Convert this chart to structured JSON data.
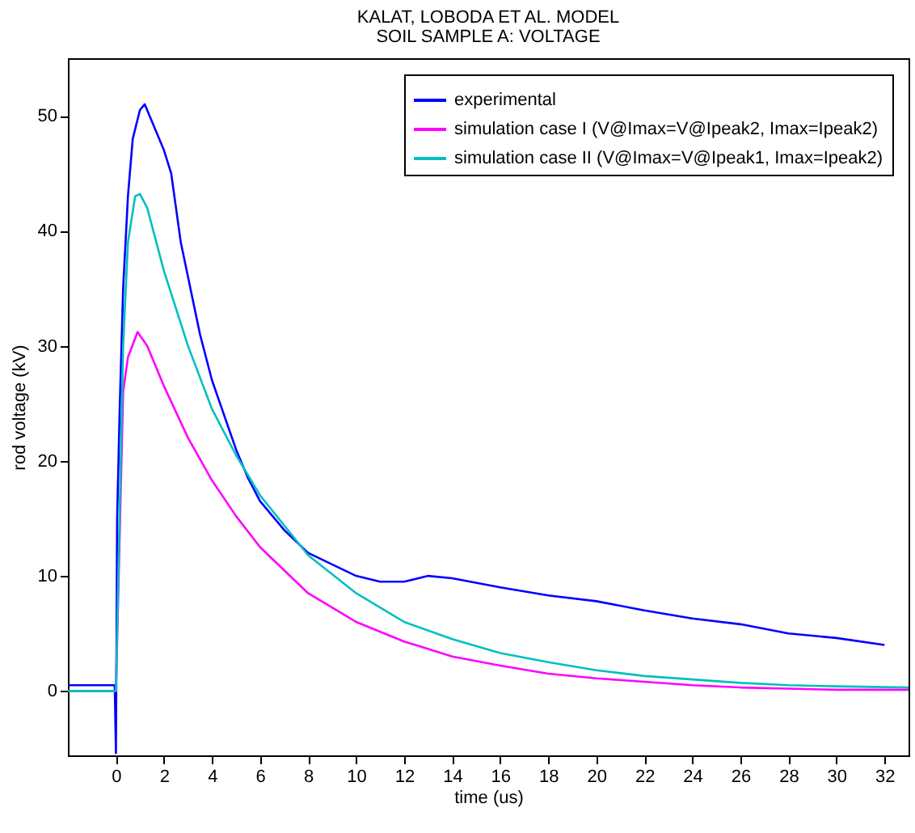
{
  "chart_data": {
    "type": "line",
    "title": "KALAT, LOBODA ET AL. MODEL",
    "subtitle": "SOIL SAMPLE A: VOLTAGE",
    "xlabel": "time (us)",
    "ylabel": "rod voltage (kV)",
    "xlim": [
      -2,
      33
    ],
    "xticks": [
      0,
      2,
      4,
      6,
      8,
      10,
      12,
      14,
      16,
      18,
      20,
      22,
      24,
      26,
      28,
      30,
      32
    ],
    "ylim": [
      -5.6,
      55
    ],
    "yticks": [
      0,
      10,
      20,
      30,
      40,
      50
    ],
    "grid": false,
    "legend": "top right",
    "marker": "none",
    "line_style": "solid",
    "series": [
      {
        "name": "experimental",
        "color": "#0000ff",
        "x": [
          -2,
          -0.05,
          0,
          0.05,
          0.15,
          0.3,
          0.5,
          0.7,
          1,
          1.2,
          1.5,
          2,
          2.3,
          2.7,
          3,
          3.5,
          4,
          4.5,
          5,
          5.5,
          6,
          7,
          8,
          9,
          10,
          11,
          12,
          13,
          14,
          16,
          18,
          20,
          22,
          24,
          26,
          28,
          30,
          32
        ],
        "values": [
          0.5,
          0.5,
          -5.4,
          15,
          24,
          35,
          43,
          48,
          50.5,
          51,
          49.5,
          47,
          45,
          39,
          36,
          31,
          27,
          24,
          21,
          18.5,
          16.5,
          14,
          12,
          11,
          10,
          9.5,
          9.5,
          10,
          9.8,
          9,
          8.3,
          7.8,
          7,
          6.3,
          5.8,
          5,
          4.6,
          4
        ]
      },
      {
        "name": "simulation case I (V@Imax=V@Ipeak2, Imax=Ipeak2)",
        "color": "#ff00ff",
        "x": [
          -2,
          0,
          0.3,
          0.5,
          0.9,
          1.3,
          2,
          3,
          4,
          5,
          6,
          8,
          10,
          12,
          14,
          16,
          18,
          20,
          22,
          24,
          26,
          28,
          30,
          33
        ],
        "values": [
          0,
          0,
          26,
          29,
          31.2,
          30,
          26.5,
          22,
          18.3,
          15.2,
          12.5,
          8.5,
          6,
          4.3,
          3,
          2.2,
          1.5,
          1.1,
          0.8,
          0.5,
          0.3,
          0.2,
          0.1,
          0.1
        ]
      },
      {
        "name": "simulation case II (V@Imax=V@Ipeak1, Imax=Ipeak2)",
        "color": "#00bfbf",
        "x": [
          -2,
          0,
          0.1,
          0.3,
          0.5,
          0.8,
          1,
          1.3,
          2,
          3,
          4,
          5,
          6,
          8,
          10,
          12,
          14,
          16,
          18,
          20,
          22,
          24,
          26,
          28,
          30,
          33
        ],
        "values": [
          0,
          0,
          10,
          30,
          39,
          43,
          43.2,
          42,
          36.5,
          30,
          24.5,
          20.5,
          17,
          11.8,
          8.5,
          6,
          4.5,
          3.3,
          2.5,
          1.8,
          1.3,
          1,
          0.7,
          0.5,
          0.4,
          0.3
        ]
      }
    ]
  }
}
